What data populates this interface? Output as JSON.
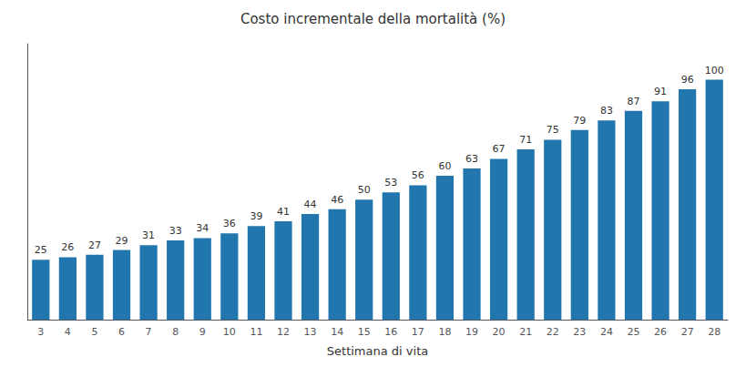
{
  "chart_data": {
    "type": "bar",
    "title": "Costo incrementale della mortalità (%)",
    "xlabel": "Settimana di vita",
    "categories": [
      "3",
      "4",
      "5",
      "6",
      "7",
      "8",
      "9",
      "10",
      "11",
      "12",
      "13",
      "14",
      "15",
      "16",
      "17",
      "18",
      "19",
      "20",
      "21",
      "22",
      "23",
      "24",
      "25",
      "26",
      "27",
      "28"
    ],
    "values": [
      25,
      26,
      27,
      29,
      31,
      33,
      34,
      36,
      39,
      41,
      44,
      46,
      50,
      53,
      56,
      60,
      63,
      67,
      71,
      75,
      79,
      83,
      87,
      91,
      96,
      100
    ],
    "color": "#2176AE",
    "ylim": [
      0,
      115
    ],
    "grid": false,
    "data_labels": true,
    "tick_labels": "x"
  }
}
